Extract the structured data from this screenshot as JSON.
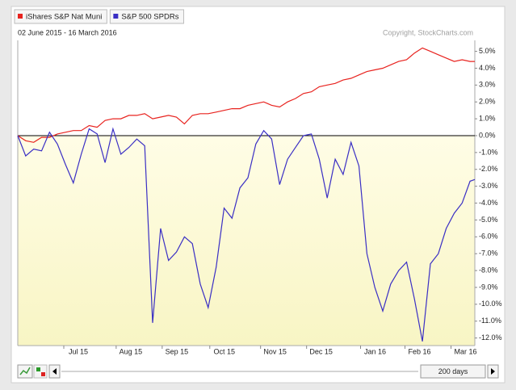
{
  "chart_data": {
    "type": "line",
    "subtitle": "02 June 2015 - 16 March 2016",
    "copyright": "Copyright, StockCharts.com",
    "x": [
      "2015-06-02",
      "2015-06-07",
      "2015-06-12",
      "2015-06-17",
      "2015-06-22",
      "2015-06-27",
      "2015-07-02",
      "2015-07-07",
      "2015-07-12",
      "2015-07-17",
      "2015-07-22",
      "2015-07-27",
      "2015-08-01",
      "2015-08-06",
      "2015-08-11",
      "2015-08-16",
      "2015-08-21",
      "2015-08-26",
      "2015-08-31",
      "2015-09-05",
      "2015-09-10",
      "2015-09-15",
      "2015-09-20",
      "2015-09-25",
      "2015-09-30",
      "2015-10-05",
      "2015-10-10",
      "2015-10-15",
      "2015-10-20",
      "2015-10-25",
      "2015-10-30",
      "2015-11-04",
      "2015-11-09",
      "2015-11-14",
      "2015-11-19",
      "2015-11-24",
      "2015-11-29",
      "2015-12-04",
      "2015-12-09",
      "2015-12-14",
      "2015-12-19",
      "2015-12-24",
      "2015-12-29",
      "2016-01-03",
      "2016-01-08",
      "2016-01-13",
      "2016-01-18",
      "2016-01-23",
      "2016-01-28",
      "2016-02-02",
      "2016-02-07",
      "2016-02-12",
      "2016-02-17",
      "2016-02-22",
      "2016-02-27",
      "2016-03-03",
      "2016-03-08",
      "2016-03-13",
      "2016-03-16"
    ],
    "series": [
      {
        "name": "iShares S&P Nat Muni",
        "color": "#e8231f",
        "values": [
          0,
          -0.3,
          -0.4,
          -0.1,
          -0.1,
          0.1,
          0.2,
          0.3,
          0.3,
          0.6,
          0.5,
          0.9,
          1.0,
          1.0,
          1.2,
          1.2,
          1.3,
          1.0,
          1.1,
          1.2,
          1.1,
          0.7,
          1.2,
          1.3,
          1.3,
          1.4,
          1.5,
          1.6,
          1.6,
          1.8,
          1.9,
          2.0,
          1.8,
          1.7,
          2.0,
          2.2,
          2.5,
          2.6,
          2.9,
          3.0,
          3.1,
          3.3,
          3.4,
          3.6,
          3.8,
          3.9,
          4.0,
          4.2,
          4.4,
          4.5,
          4.9,
          5.2,
          5.0,
          4.8,
          4.6,
          4.4,
          4.5,
          4.4,
          4.4
        ]
      },
      {
        "name": "S&P 500 SPDRs",
        "color": "#3a2fc4",
        "values": [
          0,
          -1.2,
          -0.8,
          -0.9,
          0.2,
          -0.5,
          -1.7,
          -2.8,
          -1.1,
          0.4,
          0.1,
          -1.6,
          0.4,
          -1.1,
          -0.7,
          -0.2,
          -0.6,
          -11.1,
          -5.5,
          -7.4,
          -6.9,
          -6.0,
          -6.4,
          -8.8,
          -10.2,
          -7.8,
          -4.3,
          -4.9,
          -3.1,
          -2.5,
          -0.5,
          0.3,
          -0.2,
          -2.9,
          -1.4,
          -0.7,
          0.0,
          0.1,
          -1.4,
          -3.7,
          -1.4,
          -2.3,
          -0.4,
          -1.8,
          -7.0,
          -9.0,
          -10.4,
          -8.8,
          -8.0,
          -7.5,
          -9.7,
          -12.2,
          -7.6,
          -7.0,
          -5.5,
          -4.6,
          -4.0,
          -2.7,
          -2.6
        ]
      }
    ],
    "xlim": [
      "2015-06-02",
      "2016-03-16"
    ],
    "xticks": [
      {
        "value": "2015-07-01",
        "label": "Jul 15"
      },
      {
        "value": "2015-08-03",
        "label": "Aug 15"
      },
      {
        "value": "2015-09-01",
        "label": "Sep 15"
      },
      {
        "value": "2015-10-01",
        "label": "Oct 15"
      },
      {
        "value": "2015-11-02",
        "label": "Nov 15"
      },
      {
        "value": "2015-12-01",
        "label": "Dec 15"
      },
      {
        "value": "2016-01-04",
        "label": "Jan 16"
      },
      {
        "value": "2016-02-01",
        "label": "Feb 16"
      },
      {
        "value": "2016-03-01",
        "label": "Mar 16"
      }
    ],
    "ylim": [
      -12.45,
      5.65
    ],
    "yticks": [
      {
        "value": 5,
        "label": "5.0%"
      },
      {
        "value": 4,
        "label": "4.0%"
      },
      {
        "value": 3,
        "label": "3.0%"
      },
      {
        "value": 2,
        "label": "2.0%"
      },
      {
        "value": 1,
        "label": "1.0%"
      },
      {
        "value": 0,
        "label": "0.0%"
      },
      {
        "value": -1,
        "label": "-1.0%"
      },
      {
        "value": -2,
        "label": "-2.0%"
      },
      {
        "value": -3,
        "label": "-3.0%"
      },
      {
        "value": -4,
        "label": "-4.0%"
      },
      {
        "value": -5,
        "label": "-5.0%"
      },
      {
        "value": -6,
        "label": "-6.0%"
      },
      {
        "value": -7,
        "label": "-7.0%"
      },
      {
        "value": -8,
        "label": "-8.0%"
      },
      {
        "value": -9,
        "label": "-9.0%"
      },
      {
        "value": -10,
        "label": "-10.0%"
      },
      {
        "value": -11,
        "label": "-11.0%"
      },
      {
        "value": -12,
        "label": "-12.0%"
      }
    ],
    "grid": false
  },
  "controls": {
    "period": "200 days"
  }
}
